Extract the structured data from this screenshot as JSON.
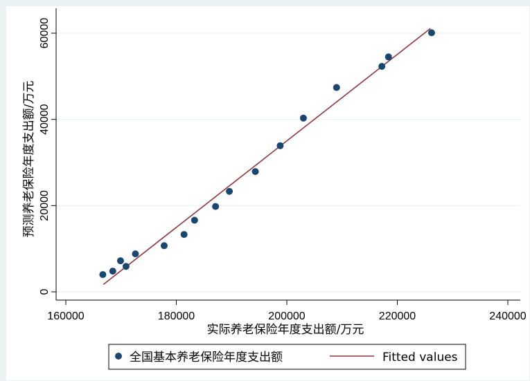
{
  "chart_data": {
    "type": "scatter",
    "xlabel": "实际养老保险年度支出额/万元",
    "ylabel": "预测养老保险年度支出额/万元",
    "xlim": [
      160000,
      240000
    ],
    "ylim": [
      0,
      60000
    ],
    "xticks": [
      160000,
      180000,
      200000,
      220000,
      240000
    ],
    "yticks": [
      0,
      20000,
      40000,
      60000
    ],
    "grid": true,
    "legend_position": "bottom",
    "series": [
      {
        "name": "全国基本养老保险年度支出额",
        "kind": "scatter",
        "color": "#1a476f",
        "x": [
          166700,
          168500,
          169900,
          170900,
          172600,
          177800,
          181400,
          183300,
          187100,
          189600,
          194300,
          198800,
          203000,
          209000,
          217200,
          218400,
          226200
        ],
        "y": [
          4000,
          4800,
          7200,
          5900,
          8800,
          10700,
          13300,
          16600,
          19800,
          23300,
          27900,
          33900,
          40300,
          47400,
          52300,
          54500,
          60100
        ]
      },
      {
        "name": "Fitted values",
        "kind": "line",
        "color": "#90353b",
        "x": [
          166800,
          226000
        ],
        "y": [
          1700,
          61100
        ]
      }
    ]
  }
}
